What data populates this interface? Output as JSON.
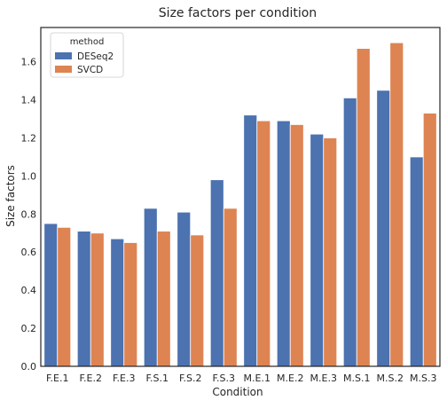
{
  "chart_data": {
    "type": "bar",
    "title": "Size factors per condition",
    "xlabel": "Condition",
    "ylabel": "Size factors",
    "ylim": [
      0,
      1.78
    ],
    "yticks": [
      0.0,
      0.2,
      0.4,
      0.6,
      0.8,
      1.0,
      1.2,
      1.4,
      1.6
    ],
    "ytick_labels": [
      "0.0",
      "0.2",
      "0.4",
      "0.6",
      "0.8",
      "1.0",
      "1.2",
      "1.4",
      "1.6"
    ],
    "grid": false,
    "legend_title": "method",
    "legend_placement": "top-left",
    "categories": [
      "F.E.1",
      "F.E.2",
      "F.E.3",
      "F.S.1",
      "F.S.2",
      "F.S.3",
      "M.E.1",
      "M.E.2",
      "M.E.3",
      "M.S.1",
      "M.S.2",
      "M.S.3"
    ],
    "series": [
      {
        "name": "DESeq2",
        "color": "#4c72b0",
        "values": [
          0.75,
          0.71,
          0.67,
          0.83,
          0.81,
          0.98,
          1.32,
          1.29,
          1.22,
          1.41,
          1.45,
          1.1
        ]
      },
      {
        "name": "SVCD",
        "color": "#dd8452",
        "values": [
          0.73,
          0.7,
          0.65,
          0.71,
          0.69,
          0.83,
          1.29,
          1.27,
          1.2,
          1.67,
          1.7,
          1.33
        ]
      }
    ]
  }
}
